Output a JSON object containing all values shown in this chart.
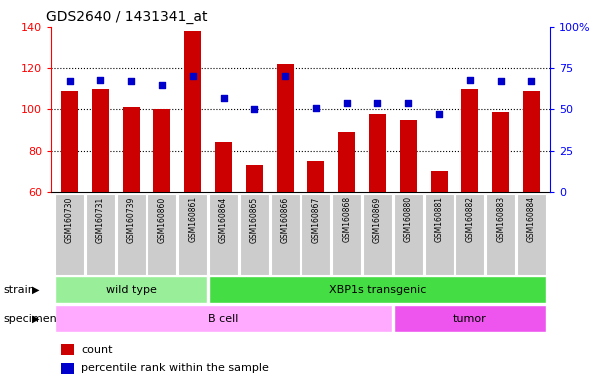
{
  "title": "GDS2640 / 1431341_at",
  "samples": [
    "GSM160730",
    "GSM160731",
    "GSM160739",
    "GSM160860",
    "GSM160861",
    "GSM160864",
    "GSM160865",
    "GSM160866",
    "GSM160867",
    "GSM160868",
    "GSM160869",
    "GSM160880",
    "GSM160881",
    "GSM160882",
    "GSM160883",
    "GSM160884"
  ],
  "counts": [
    109,
    110,
    101,
    100,
    138,
    84,
    73,
    122,
    75,
    89,
    98,
    95,
    70,
    110,
    99,
    109
  ],
  "percentiles": [
    67,
    68,
    67,
    65,
    70,
    57,
    50,
    70,
    51,
    54,
    54,
    54,
    47,
    68,
    67,
    67
  ],
  "ylim_left": [
    60,
    140
  ],
  "ylim_right": [
    0,
    100
  ],
  "yticks_left": [
    60,
    80,
    100,
    120,
    140
  ],
  "yticks_right": [
    0,
    25,
    50,
    75,
    100
  ],
  "yticklabels_right": [
    "0",
    "25",
    "50",
    "75",
    "100%"
  ],
  "bar_color": "#cc0000",
  "dot_color": "#0000cc",
  "strain_groups": [
    {
      "label": "wild type",
      "start": 0,
      "end": 4,
      "color": "#99ee99"
    },
    {
      "label": "XBP1s transgenic",
      "start": 5,
      "end": 15,
      "color": "#44dd44"
    }
  ],
  "specimen_groups": [
    {
      "label": "B cell",
      "start": 0,
      "end": 10,
      "color": "#ffaaff"
    },
    {
      "label": "tumor",
      "start": 11,
      "end": 15,
      "color": "#ee55ee"
    }
  ],
  "bg_color": "#ffffff",
  "tick_label_bg": "#cccccc",
  "dotted_lines": [
    80,
    100,
    120
  ],
  "bar_width": 0.55,
  "legend_items": [
    {
      "color": "#cc0000",
      "label": "count"
    },
    {
      "color": "#0000cc",
      "label": "percentile rank within the sample"
    }
  ]
}
